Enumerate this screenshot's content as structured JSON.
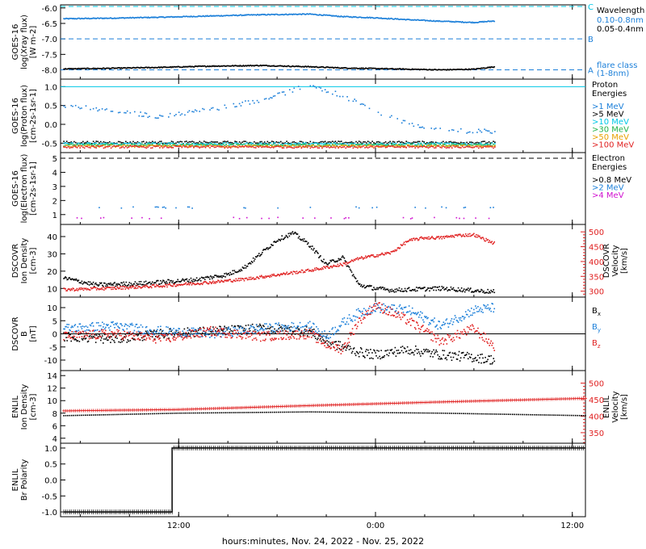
{
  "colors": {
    "black": "#000000",
    "blue": "#1b7fd9",
    "cyan": "#00c8e6",
    "green": "#21b24a",
    "orange": "#e8a000",
    "red": "#e02020",
    "magenta": "#d010d0"
  },
  "footer": {
    "xlabel": "hours:minutes, Nov. 24, 2022 - Nov. 25, 2022"
  },
  "x_axis": {
    "range_hours": [
      4.8,
      36.8
    ],
    "ticks": [
      {
        "hour": 12,
        "label": "12:00"
      },
      {
        "hour": 24,
        "label": "0:00"
      },
      {
        "hour": 36,
        "label": "12:00"
      }
    ],
    "data_end_hour": 31.3
  },
  "chart_data": [
    {
      "type": "scatter",
      "panel": "xray",
      "ylabel_lines": [
        "GOES-16",
        "log(Xray flux)",
        "[W m-2]"
      ],
      "ylim": [
        -8.3,
        -5.9
      ],
      "ticks": [
        -6.0,
        -6.5,
        -7.0,
        -7.5,
        -8.0
      ],
      "tick_labels": [
        "-6.0",
        "-6.5",
        "-7.0",
        "-7.5",
        "-8.0"
      ],
      "legend_title": "Wavelength",
      "flare_class_label": [
        "flare class",
        "(1-8nm)"
      ],
      "flare_levels": [
        {
          "y": -5.9,
          "label": "C"
        },
        {
          "y": -7.0,
          "label": "B"
        },
        {
          "y": -8.0,
          "label": "A"
        }
      ],
      "series": [
        {
          "name": "0.10-0.8nm",
          "color_key": "blue",
          "x": [
            5,
            8,
            11,
            14,
            17,
            20,
            22,
            24,
            26,
            28,
            30,
            31.3
          ],
          "y": [
            -6.35,
            -6.33,
            -6.3,
            -6.26,
            -6.22,
            -6.2,
            -6.28,
            -6.32,
            -6.38,
            -6.43,
            -6.47,
            -6.42
          ]
        },
        {
          "name": "0.05-0.4nm",
          "color_key": "black",
          "x": [
            5,
            8,
            11,
            14,
            17,
            20,
            22,
            24,
            26,
            28,
            30,
            31.3
          ],
          "y": [
            -7.97,
            -7.95,
            -7.92,
            -7.88,
            -7.86,
            -7.9,
            -7.94,
            -7.96,
            -7.98,
            -8.0,
            -7.98,
            -7.9
          ]
        }
      ]
    },
    {
      "type": "scatter",
      "panel": "proton",
      "ylabel_lines": [
        "GOES-16",
        "log(Proton flux)",
        "[cm-2s-1sr-1]"
      ],
      "ylim": [
        -0.75,
        1.2
      ],
      "ticks": [
        1.0,
        0.5,
        0.0,
        -0.5
      ],
      "tick_labels": [
        "1.0",
        "0.5",
        "0.0",
        "-0.5"
      ],
      "legend_title": [
        "Proton",
        "Energies"
      ],
      "reference_line": 1.0,
      "series": [
        {
          "name": ">1 MeV",
          "color_key": "blue",
          "x": [
            5,
            8,
            11,
            14,
            17,
            19,
            20,
            22,
            24,
            26,
            28,
            31.3
          ],
          "y": [
            0.5,
            0.35,
            0.2,
            0.4,
            0.65,
            0.9,
            1.05,
            0.75,
            0.35,
            0.0,
            -0.15,
            -0.2
          ]
        },
        {
          "name": ">5 MeV",
          "color_key": "black",
          "x": [
            5,
            31.3
          ],
          "y": [
            -0.48,
            -0.48
          ]
        },
        {
          "name": ">10 MeV",
          "color_key": "cyan",
          "x": [
            5,
            31.3
          ],
          "y": [
            -0.52,
            -0.52
          ]
        },
        {
          "name": ">30 MeV",
          "color_key": "green",
          "x": [
            5,
            31.3
          ],
          "y": [
            -0.55,
            -0.55
          ]
        },
        {
          "name": ">50 MeV",
          "color_key": "orange",
          "x": [
            5,
            31.3
          ],
          "y": [
            -0.58,
            -0.58
          ]
        },
        {
          "name": ">100 MeV",
          "color_key": "red",
          "x": [
            5,
            31.3
          ],
          "y": [
            -0.6,
            -0.6
          ]
        }
      ]
    },
    {
      "type": "scatter",
      "panel": "electron",
      "ylabel_lines": [
        "GOES-16",
        "log(Electron flux)",
        "[cm-2s-1sr-1]"
      ],
      "ylim": [
        0.3,
        5.4
      ],
      "ticks": [
        5,
        4,
        3,
        2,
        1
      ],
      "tick_labels": [
        "5",
        "4",
        "3",
        "2",
        "1"
      ],
      "legend_title": [
        "Electron",
        "Energies"
      ],
      "reference_line": 5.0,
      "series": [
        {
          "name": ">0.8 MeV",
          "color_key": "black",
          "x": [],
          "y": []
        },
        {
          "name": ">2 MeV",
          "color_key": "blue",
          "x": [
            5,
            31.3
          ],
          "y": [
            1.5,
            1.5
          ]
        },
        {
          "name": ">4 MeV",
          "color_key": "magenta",
          "x": [
            5,
            31.3
          ],
          "y": [
            0.75,
            0.75
          ]
        }
      ]
    },
    {
      "type": "scatter",
      "panel": "dscovr_plasma",
      "ylabel_lines": [
        "DSCOVR",
        "Ion Density",
        "[cm-3]"
      ],
      "ylim": [
        5,
        47
      ],
      "ticks": [
        40,
        30,
        20,
        10
      ],
      "tick_labels": [
        "40",
        "30",
        "20",
        "10"
      ],
      "right_axis": {
        "label_lines": [
          "DSCOVR",
          "Velocity",
          "[km/s]"
        ],
        "ylim": [
          280,
          525
        ],
        "ticks": [
          500,
          450,
          400,
          350,
          300
        ],
        "tick_labels": [
          "500",
          "450",
          "400",
          "350",
          "300"
        ],
        "color_key": "red"
      },
      "series": [
        {
          "name": "Density",
          "color_key": "black",
          "axis": "left",
          "x": [
            5,
            6,
            7,
            10,
            13,
            15,
            16,
            17,
            18,
            19,
            20,
            21,
            22,
            23,
            24,
            25,
            28,
            31.3
          ],
          "y": [
            16,
            14,
            12,
            13,
            15,
            18,
            22,
            30,
            38,
            42,
            35,
            24,
            28,
            12,
            10,
            9,
            10,
            8
          ]
        },
        {
          "name": "Velocity",
          "color_key": "red",
          "axis": "right",
          "x": [
            5,
            8,
            11,
            14,
            16,
            18,
            20,
            22,
            23,
            24,
            25,
            26,
            27,
            28,
            29,
            30,
            31.3
          ],
          "y": [
            305,
            310,
            318,
            330,
            340,
            355,
            370,
            390,
            410,
            420,
            430,
            470,
            480,
            480,
            488,
            490,
            460
          ]
        }
      ]
    },
    {
      "type": "scatter",
      "panel": "dscovr_mag",
      "ylabel_lines": [
        "DSCOVR",
        "B",
        "[nT]"
      ],
      "ylim": [
        -14,
        14
      ],
      "ticks": [
        10,
        5,
        0,
        -5,
        -10
      ],
      "tick_labels": [
        "10",
        "5",
        "0",
        "-5",
        "-10"
      ],
      "zero_line": 0,
      "series": [
        {
          "name": "Bx",
          "color_key": "black",
          "x": [
            5,
            8,
            11,
            14,
            17,
            20,
            21,
            22,
            23,
            24,
            26,
            28,
            30,
            31.3
          ],
          "y": [
            -1,
            -2,
            0,
            1,
            2,
            1,
            -3,
            -5,
            -7,
            -8,
            -6,
            -8,
            -9,
            -10
          ]
        },
        {
          "name": "By",
          "color_key": "blue",
          "x": [
            5,
            8,
            11,
            14,
            17,
            20,
            21,
            22,
            23,
            24,
            26,
            28,
            30,
            31.3
          ],
          "y": [
            2,
            3,
            1,
            0,
            2,
            3,
            -1,
            4,
            8,
            10,
            9,
            3,
            9,
            10
          ]
        },
        {
          "name": "Bz",
          "color_key": "red",
          "x": [
            5,
            8,
            11,
            14,
            17,
            20,
            21,
            22,
            23,
            24,
            26,
            28,
            30,
            31.3
          ],
          "y": [
            -1,
            0,
            -2,
            1,
            -1,
            0,
            -4,
            -6,
            5,
            11,
            5,
            -3,
            2,
            -5
          ]
        }
      ]
    },
    {
      "type": "scatter",
      "panel": "enlil_plasma",
      "ylabel_lines": [
        "ENLIL",
        "Ion Density",
        "[cm-3]"
      ],
      "ylim": [
        3.2,
        14.8
      ],
      "ticks": [
        14,
        12,
        10,
        8,
        6,
        4
      ],
      "tick_labels": [
        "14",
        "12",
        "10",
        "8",
        "6",
        "4"
      ],
      "right_axis": {
        "label_lines": [
          "ENLIL",
          "Velocity",
          "[km/s]"
        ],
        "ylim": [
          318,
          538
        ],
        "ticks": [
          500,
          450,
          400,
          350
        ],
        "tick_labels": [
          "500",
          "450",
          "400",
          "350"
        ],
        "color_key": "red"
      },
      "series": [
        {
          "name": "Density",
          "color_key": "black",
          "axis": "left",
          "x": [
            5,
            12,
            20,
            28,
            36.8
          ],
          "y": [
            7.6,
            8.0,
            8.2,
            8.0,
            7.6
          ]
        },
        {
          "name": "Velocity",
          "color_key": "red",
          "axis": "right",
          "x": [
            5,
            12,
            20,
            28,
            36.8
          ],
          "y": [
            416,
            420,
            432,
            443,
            454
          ]
        }
      ]
    },
    {
      "type": "scatter",
      "panel": "enlil_polarity",
      "ylabel_lines": [
        "ENLIL",
        "Br Polarity"
      ],
      "ylim": [
        -1.15,
        1.15
      ],
      "ticks": [
        1.0,
        0.5,
        0.0,
        -0.5,
        -1.0
      ],
      "tick_labels": [
        "1.0",
        "0.5",
        "0.0",
        "-0.5",
        "-1.0"
      ],
      "series": [
        {
          "name": "Polarity",
          "color_key": "black",
          "x": [
            5,
            11.6,
            11.6,
            36.8
          ],
          "y": [
            -1,
            -1,
            1,
            1
          ]
        }
      ]
    }
  ]
}
